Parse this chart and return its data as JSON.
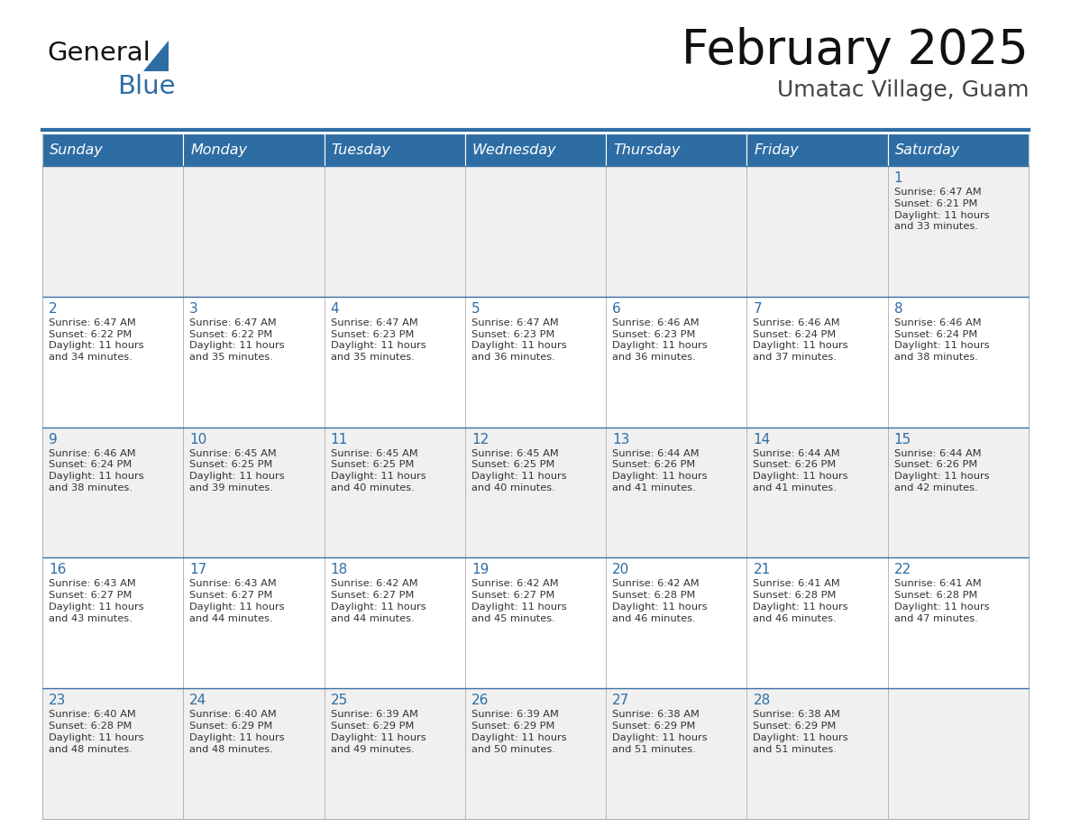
{
  "title": "February 2025",
  "subtitle": "Umatac Village, Guam",
  "days_of_week": [
    "Sunday",
    "Monday",
    "Tuesday",
    "Wednesday",
    "Thursday",
    "Friday",
    "Saturday"
  ],
  "header_bg": "#2E6DA4",
  "header_text": "#FFFFFF",
  "row_bg_odd": "#F0F0F0",
  "row_bg_even": "#FFFFFF",
  "cell_border": "#AAAAAA",
  "day_number_color": "#2E6DA4",
  "info_text_color": "#333333",
  "title_color": "#111111",
  "subtitle_color": "#444444",
  "logo_general_color": "#111111",
  "logo_blue_color": "#2E6DA4",
  "weeks": [
    [
      {
        "day": null,
        "info": null
      },
      {
        "day": null,
        "info": null
      },
      {
        "day": null,
        "info": null
      },
      {
        "day": null,
        "info": null
      },
      {
        "day": null,
        "info": null
      },
      {
        "day": null,
        "info": null
      },
      {
        "day": 1,
        "info": "Sunrise: 6:47 AM\nSunset: 6:21 PM\nDaylight: 11 hours\nand 33 minutes."
      }
    ],
    [
      {
        "day": 2,
        "info": "Sunrise: 6:47 AM\nSunset: 6:22 PM\nDaylight: 11 hours\nand 34 minutes."
      },
      {
        "day": 3,
        "info": "Sunrise: 6:47 AM\nSunset: 6:22 PM\nDaylight: 11 hours\nand 35 minutes."
      },
      {
        "day": 4,
        "info": "Sunrise: 6:47 AM\nSunset: 6:23 PM\nDaylight: 11 hours\nand 35 minutes."
      },
      {
        "day": 5,
        "info": "Sunrise: 6:47 AM\nSunset: 6:23 PM\nDaylight: 11 hours\nand 36 minutes."
      },
      {
        "day": 6,
        "info": "Sunrise: 6:46 AM\nSunset: 6:23 PM\nDaylight: 11 hours\nand 36 minutes."
      },
      {
        "day": 7,
        "info": "Sunrise: 6:46 AM\nSunset: 6:24 PM\nDaylight: 11 hours\nand 37 minutes."
      },
      {
        "day": 8,
        "info": "Sunrise: 6:46 AM\nSunset: 6:24 PM\nDaylight: 11 hours\nand 38 minutes."
      }
    ],
    [
      {
        "day": 9,
        "info": "Sunrise: 6:46 AM\nSunset: 6:24 PM\nDaylight: 11 hours\nand 38 minutes."
      },
      {
        "day": 10,
        "info": "Sunrise: 6:45 AM\nSunset: 6:25 PM\nDaylight: 11 hours\nand 39 minutes."
      },
      {
        "day": 11,
        "info": "Sunrise: 6:45 AM\nSunset: 6:25 PM\nDaylight: 11 hours\nand 40 minutes."
      },
      {
        "day": 12,
        "info": "Sunrise: 6:45 AM\nSunset: 6:25 PM\nDaylight: 11 hours\nand 40 minutes."
      },
      {
        "day": 13,
        "info": "Sunrise: 6:44 AM\nSunset: 6:26 PM\nDaylight: 11 hours\nand 41 minutes."
      },
      {
        "day": 14,
        "info": "Sunrise: 6:44 AM\nSunset: 6:26 PM\nDaylight: 11 hours\nand 41 minutes."
      },
      {
        "day": 15,
        "info": "Sunrise: 6:44 AM\nSunset: 6:26 PM\nDaylight: 11 hours\nand 42 minutes."
      }
    ],
    [
      {
        "day": 16,
        "info": "Sunrise: 6:43 AM\nSunset: 6:27 PM\nDaylight: 11 hours\nand 43 minutes."
      },
      {
        "day": 17,
        "info": "Sunrise: 6:43 AM\nSunset: 6:27 PM\nDaylight: 11 hours\nand 44 minutes."
      },
      {
        "day": 18,
        "info": "Sunrise: 6:42 AM\nSunset: 6:27 PM\nDaylight: 11 hours\nand 44 minutes."
      },
      {
        "day": 19,
        "info": "Sunrise: 6:42 AM\nSunset: 6:27 PM\nDaylight: 11 hours\nand 45 minutes."
      },
      {
        "day": 20,
        "info": "Sunrise: 6:42 AM\nSunset: 6:28 PM\nDaylight: 11 hours\nand 46 minutes."
      },
      {
        "day": 21,
        "info": "Sunrise: 6:41 AM\nSunset: 6:28 PM\nDaylight: 11 hours\nand 46 minutes."
      },
      {
        "day": 22,
        "info": "Sunrise: 6:41 AM\nSunset: 6:28 PM\nDaylight: 11 hours\nand 47 minutes."
      }
    ],
    [
      {
        "day": 23,
        "info": "Sunrise: 6:40 AM\nSunset: 6:28 PM\nDaylight: 11 hours\nand 48 minutes."
      },
      {
        "day": 24,
        "info": "Sunrise: 6:40 AM\nSunset: 6:29 PM\nDaylight: 11 hours\nand 48 minutes."
      },
      {
        "day": 25,
        "info": "Sunrise: 6:39 AM\nSunset: 6:29 PM\nDaylight: 11 hours\nand 49 minutes."
      },
      {
        "day": 26,
        "info": "Sunrise: 6:39 AM\nSunset: 6:29 PM\nDaylight: 11 hours\nand 50 minutes."
      },
      {
        "day": 27,
        "info": "Sunrise: 6:38 AM\nSunset: 6:29 PM\nDaylight: 11 hours\nand 51 minutes."
      },
      {
        "day": 28,
        "info": "Sunrise: 6:38 AM\nSunset: 6:29 PM\nDaylight: 11 hours\nand 51 minutes."
      },
      {
        "day": null,
        "info": null
      }
    ]
  ]
}
